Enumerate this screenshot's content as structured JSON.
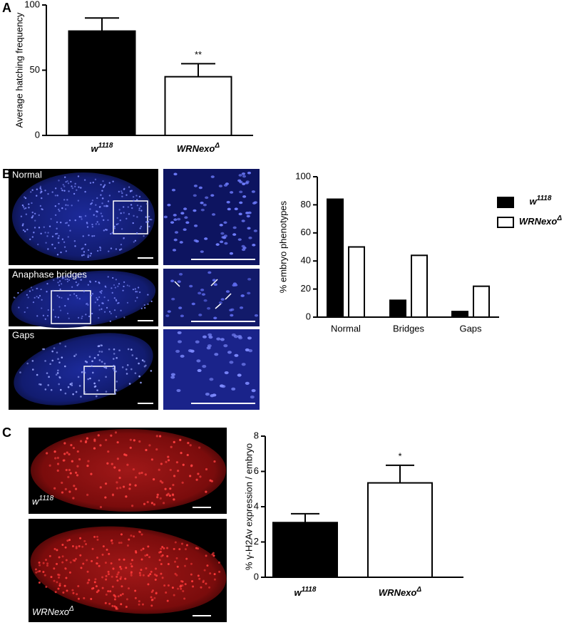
{
  "panel_labels": [
    "A",
    "B",
    "C"
  ],
  "image_labels": {
    "B": [
      "Normal",
      "Anaphase bridges",
      "Gaps"
    ],
    "C": [
      {
        "base": "w",
        "sup": "1118"
      },
      {
        "base": "WRNexo",
        "sup": "Δ"
      }
    ]
  },
  "chart_data": [
    {
      "type": "bar",
      "ylabel": "Average hatching frequency",
      "categories": [
        {
          "base": "w",
          "sup": "1118"
        },
        {
          "base": "WRNexo",
          "sup": "Δ"
        }
      ],
      "values": [
        80,
        45
      ],
      "errors": [
        10,
        10
      ],
      "colors": [
        "#000000",
        "#ffffff"
      ],
      "significance_labels": [
        null,
        "**"
      ],
      "ylim": [
        0,
        100
      ],
      "yticks": [
        0,
        50,
        100
      ]
    },
    {
      "type": "grouped_bar",
      "ylabel": "% embryo phenotypes",
      "categories": [
        "Normal",
        "Bridges",
        "Gaps"
      ],
      "series": [
        {
          "name": {
            "base": "w",
            "sup": "1118"
          },
          "color": "#000000",
          "values": [
            84,
            12,
            4
          ]
        },
        {
          "name": {
            "base": "WRNexo",
            "sup": "Δ"
          },
          "color": "#ffffff",
          "values": [
            50,
            44,
            22
          ]
        }
      ],
      "legend": "upper right",
      "ylim": [
        0,
        100
      ],
      "yticks": [
        0,
        20,
        40,
        60,
        80,
        100
      ]
    },
    {
      "type": "bar",
      "ylabel": "% γ-H2Av expression / embryo",
      "categories": [
        {
          "base": "w",
          "sup": "1118"
        },
        {
          "base": "WRNexo",
          "sup": "Δ"
        }
      ],
      "values": [
        3.1,
        5.35
      ],
      "errors": [
        0.5,
        1.0
      ],
      "colors": [
        "#000000",
        "#ffffff"
      ],
      "significance_labels": [
        null,
        "*"
      ],
      "ylim": [
        0,
        8
      ],
      "yticks": [
        0,
        2,
        4,
        6,
        8
      ]
    }
  ]
}
